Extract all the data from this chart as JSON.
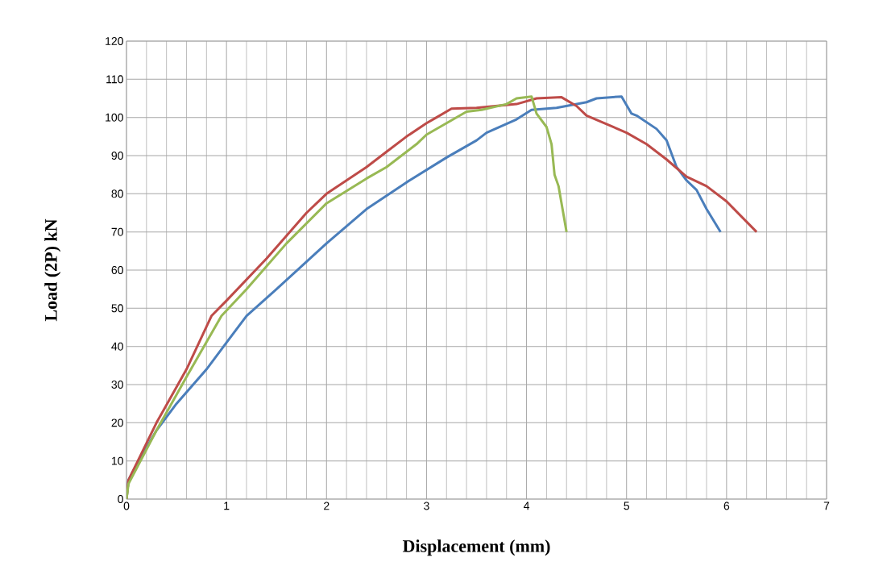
{
  "chart_data": {
    "type": "line",
    "xlabel": "Displacement  (mm)",
    "ylabel": "Load (2P) kN",
    "xlim": [
      0,
      7
    ],
    "xticks": [
      0,
      1,
      2,
      3,
      4,
      5,
      6,
      7
    ],
    "ylim": [
      0,
      120
    ],
    "yticks": [
      0,
      10,
      20,
      30,
      40,
      50,
      60,
      70,
      80,
      90,
      100,
      110,
      120
    ],
    "grid": true,
    "marker": "none",
    "line_style": "solid",
    "series": [
      {
        "color": "#4a7ebb",
        "x": [
          0,
          0.02,
          0.1,
          0.3,
          0.5,
          0.8,
          1.0,
          1.2,
          1.5,
          2.0,
          2.4,
          2.8,
          3.2,
          3.5,
          3.6,
          3.9,
          4.05,
          4.3,
          4.6,
          4.7,
          4.95,
          5.05,
          5.1,
          5.3,
          5.4,
          5.5,
          5.6,
          5.7,
          5.8,
          5.94
        ],
        "values": [
          0,
          5,
          9,
          18,
          25,
          34,
          41,
          48,
          55,
          67,
          76,
          83,
          89.5,
          94,
          96,
          99.5,
          102,
          102.5,
          104,
          105,
          105.5,
          101,
          100.5,
          97,
          94,
          87,
          83.5,
          81,
          76,
          70
        ]
      },
      {
        "color": "#be4b48",
        "x": [
          0,
          0.02,
          0.3,
          0.6,
          0.85,
          1.0,
          1.4,
          1.8,
          2.0,
          2.4,
          2.6,
          2.8,
          3.0,
          3.1,
          3.25,
          3.5,
          3.9,
          4.1,
          4.35,
          4.5,
          4.6,
          5.0,
          5.2,
          5.4,
          5.6,
          5.8,
          6.0,
          6.3
        ],
        "values": [
          0,
          5,
          20,
          34,
          48,
          52,
          63,
          75,
          80,
          87,
          91,
          95,
          98.5,
          100,
          102.3,
          102.5,
          103.5,
          105,
          105.3,
          103,
          100.5,
          96,
          93,
          89,
          84.5,
          82,
          78,
          70
        ]
      },
      {
        "color": "#98b954",
        "x": [
          0,
          0.02,
          0.3,
          0.6,
          0.95,
          1.2,
          1.6,
          2.0,
          2.4,
          2.6,
          2.8,
          2.9,
          3.0,
          3.2,
          3.4,
          3.55,
          3.8,
          3.9,
          4.05,
          4.1,
          4.2,
          4.25,
          4.28,
          4.32,
          4.4
        ],
        "values": [
          0,
          4,
          18,
          32,
          48,
          55,
          67,
          77.5,
          84,
          87,
          91,
          93,
          95.5,
          98.5,
          101.5,
          102,
          103.5,
          105,
          105.5,
          101,
          97.5,
          93,
          85,
          82,
          70
        ]
      }
    ]
  }
}
